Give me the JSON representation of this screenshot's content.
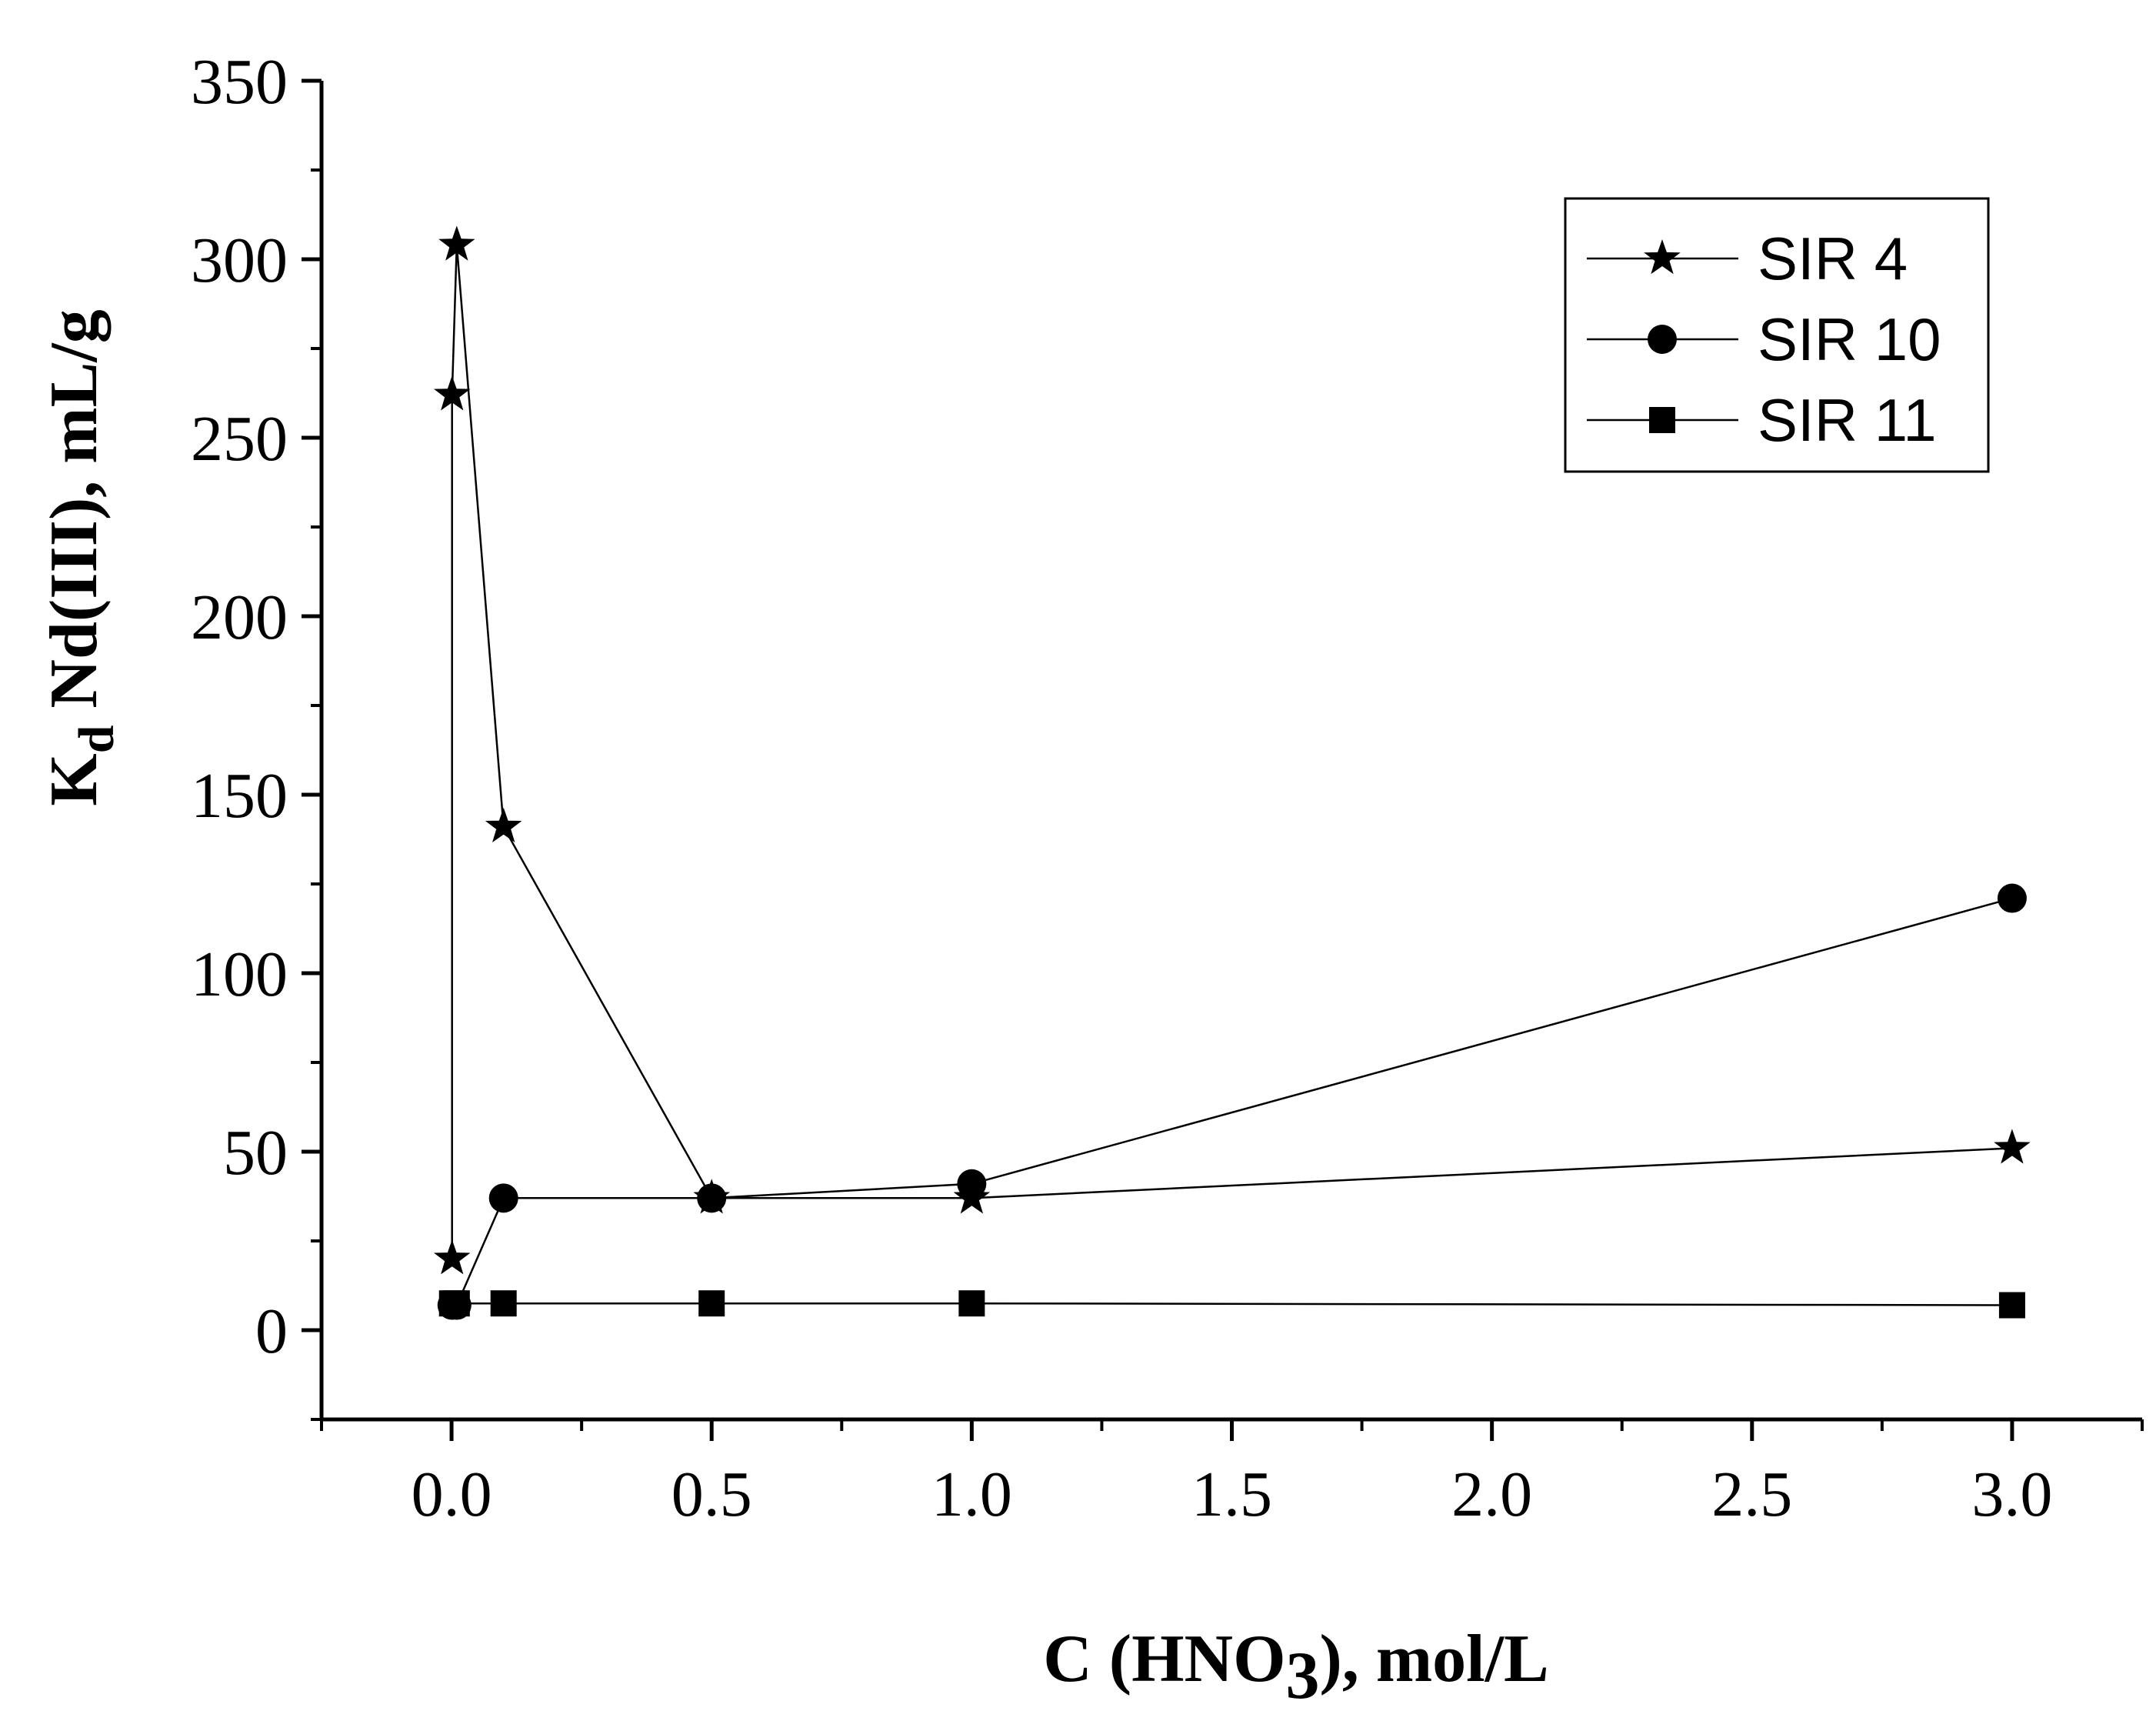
{
  "chart_data": {
    "type": "line",
    "xlabel": "C (HNO3), mol/L",
    "ylabel": "Kd Nd(III), mL/g",
    "xlim": [
      -0.25,
      3.25
    ],
    "ylim": [
      -25,
      350
    ],
    "xticks": [
      "0.0",
      "0.5",
      "1.0",
      "1.5",
      "2.0",
      "2.5",
      "3.0"
    ],
    "yticks": [
      "0",
      "50",
      "100",
      "150",
      "200",
      "250",
      "300",
      "350"
    ],
    "legend_position": "top-right",
    "series": [
      {
        "name": "SIR 4",
        "marker": "star",
        "x": [
          0.001,
          0.001,
          0.01,
          0.1,
          0.5,
          1.0,
          3.0
        ],
        "y": [
          20,
          262,
          304,
          141,
          37,
          37,
          51
        ]
      },
      {
        "name": "SIR 10",
        "marker": "circle",
        "x": [
          0.001,
          0.01,
          0.1,
          0.5,
          1.0,
          3.0
        ],
        "y": [
          7,
          7,
          37,
          37,
          41,
          121
        ]
      },
      {
        "name": "SIR 11",
        "marker": "square",
        "x": [
          0.001,
          0.01,
          0.1,
          0.5,
          1.0,
          3.0
        ],
        "y": [
          7.5,
          7.5,
          7.5,
          7.5,
          7.5,
          7
        ]
      }
    ]
  }
}
